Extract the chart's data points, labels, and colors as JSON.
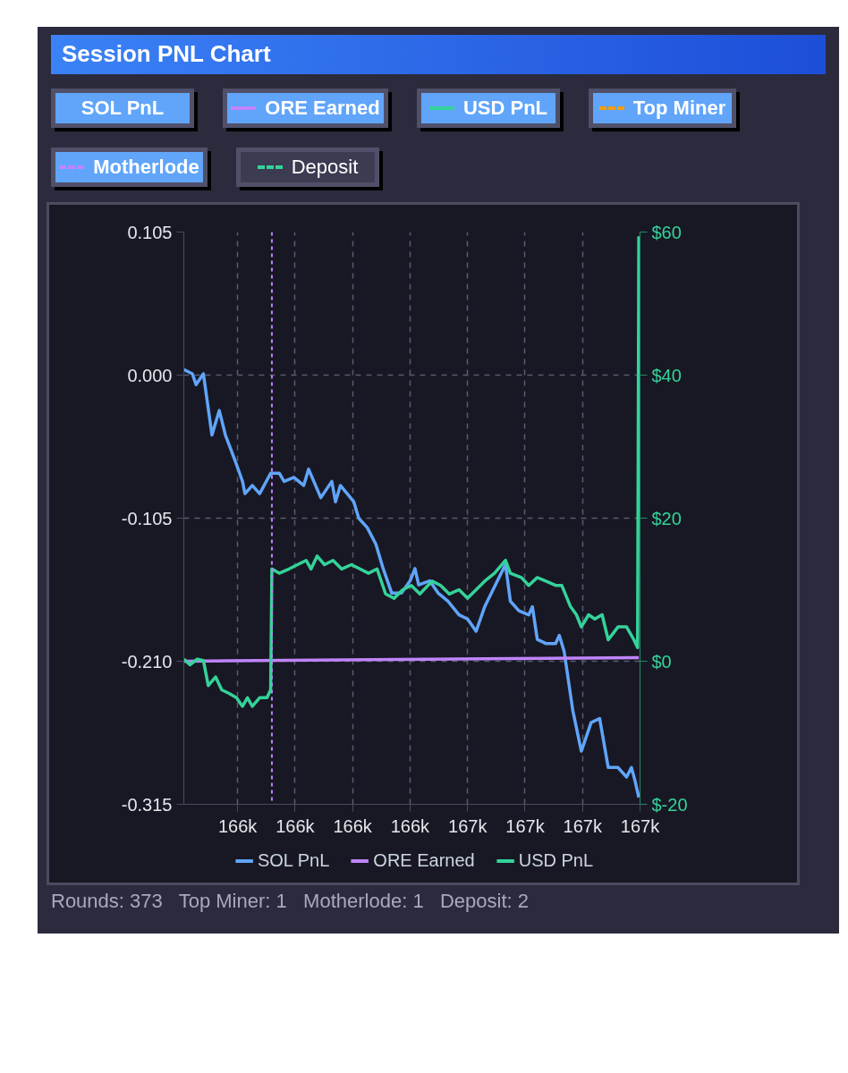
{
  "chart_data": {
    "type": "line",
    "title": "Session PNL Chart",
    "xlim": [
      166300,
      166673
    ],
    "xticks": [
      {
        "value": 166344,
        "label": "166k"
      },
      {
        "value": 166391,
        "label": "166k"
      },
      {
        "value": 166438,
        "label": "166k"
      },
      {
        "value": 166485,
        "label": "166k"
      },
      {
        "value": 166532,
        "label": "167k"
      },
      {
        "value": 166579,
        "label": "167k"
      },
      {
        "value": 166626,
        "label": "167k"
      },
      {
        "value": 166673,
        "label": "167k"
      }
    ],
    "ylim": [
      -0.315,
      0.105
    ],
    "yticks": [
      0.105,
      {
        "value": 0,
        "label": "0.000"
      },
      -0.105,
      {
        "value": -0.21,
        "label": "-0.210"
      },
      -0.315
    ],
    "y2lim": [
      -20,
      60
    ],
    "y2ticks": [
      {
        "value": -20,
        "label": "$-20"
      },
      {
        "value": 0,
        "label": "$0"
      },
      {
        "value": 20,
        "label": "$20"
      },
      {
        "value": 40,
        "label": "$40"
      },
      {
        "value": 60,
        "label": "$60"
      }
    ],
    "series": [
      {
        "name": "SOL PnL",
        "color": "#60a5fa",
        "x": [
          166300,
          166307,
          166310,
          166316,
          166323,
          166329,
          166334,
          166342,
          166348,
          166350,
          166356,
          166362,
          166371,
          166378,
          166382,
          166390,
          166398,
          166402,
          166412,
          166421,
          166424,
          166428,
          166439,
          166443,
          166450,
          166457,
          166463,
          166470,
          166478,
          166485,
          166489,
          166492,
          166501,
          166508,
          166516,
          166525,
          166532,
          166539,
          166546,
          166563,
          166567,
          166574,
          166582,
          166585,
          166589,
          166596,
          166604,
          166607,
          166611,
          166618,
          166625,
          166633,
          166640,
          166647,
          166655,
          166662,
          166666,
          166669,
          166672
        ],
        "values": [
          0.004,
          0.001,
          -0.007,
          0.001,
          -0.044,
          -0.026,
          -0.044,
          -0.063,
          -0.078,
          -0.087,
          -0.081,
          -0.087,
          -0.072,
          -0.072,
          -0.078,
          -0.075,
          -0.081,
          -0.069,
          -0.09,
          -0.078,
          -0.093,
          -0.081,
          -0.093,
          -0.105,
          -0.112,
          -0.124,
          -0.142,
          -0.16,
          -0.16,
          -0.151,
          -0.142,
          -0.154,
          -0.151,
          -0.16,
          -0.166,
          -0.176,
          -0.179,
          -0.188,
          -0.17,
          -0.139,
          -0.166,
          -0.173,
          -0.176,
          -0.17,
          -0.194,
          -0.197,
          -0.197,
          -0.191,
          -0.203,
          -0.246,
          -0.276,
          -0.255,
          -0.252,
          -0.288,
          -0.288,
          -0.295,
          -0.288,
          -0.298,
          -0.31
        ]
      },
      {
        "name": "ORE Earned",
        "color": "#c084fc",
        "axis": "y2",
        "x": [
          166300,
          166672
        ],
        "values": [
          0.0,
          0.5
        ]
      },
      {
        "name": "USD PnL",
        "color": "#34d399",
        "axis": "y2",
        "x": [
          166300,
          166305,
          166311,
          166316,
          166320,
          166326,
          166331,
          166337,
          166343,
          166348,
          166352,
          166356,
          166362,
          166368,
          166371,
          166372,
          166378,
          166386,
          166393,
          166400,
          166404,
          166409,
          166415,
          166422,
          166429,
          166437,
          166444,
          166451,
          166458,
          166465,
          166472,
          166479,
          166486,
          166493,
          166503,
          166510,
          166517,
          166525,
          166532,
          166539,
          166546,
          166554,
          166563,
          166567,
          166576,
          166582,
          166589,
          166596,
          166604,
          166609,
          166616,
          166621,
          166625,
          166631,
          166636,
          166642,
          166647,
          166655,
          166662,
          166668,
          166671,
          166672
        ],
        "values": [
          0.3,
          -0.5,
          0.3,
          0.1,
          -3.4,
          -2.2,
          -4.0,
          -4.5,
          -5.1,
          -6.3,
          -5.1,
          -6.3,
          -5.1,
          -5.1,
          -4.0,
          12.9,
          12.3,
          12.9,
          13.5,
          14.1,
          12.9,
          14.7,
          13.5,
          14.1,
          12.9,
          13.5,
          12.9,
          12.3,
          12.9,
          9.4,
          8.8,
          10.0,
          10.6,
          9.4,
          11.2,
          10.6,
          9.4,
          10.0,
          8.8,
          10.0,
          11.2,
          12.3,
          14.1,
          12.3,
          11.7,
          10.6,
          11.7,
          11.2,
          10.6,
          10.6,
          7.7,
          6.5,
          4.8,
          6.5,
          5.9,
          6.5,
          3.0,
          4.8,
          4.8,
          3.0,
          1.9,
          59.4
        ]
      }
    ],
    "ref_lines": [
      {
        "axis": "x",
        "value": 166372,
        "label": "Motherlode",
        "color": "#c084fc",
        "line_style": "dashed"
      }
    ],
    "annotations": [
      "Top Miner",
      "Deposit",
      "Rounds: 373   Top Miner: 1   Motherlode: 1   Deposit: 2"
    ],
    "grid": true,
    "legend": "top left"
  }
}
